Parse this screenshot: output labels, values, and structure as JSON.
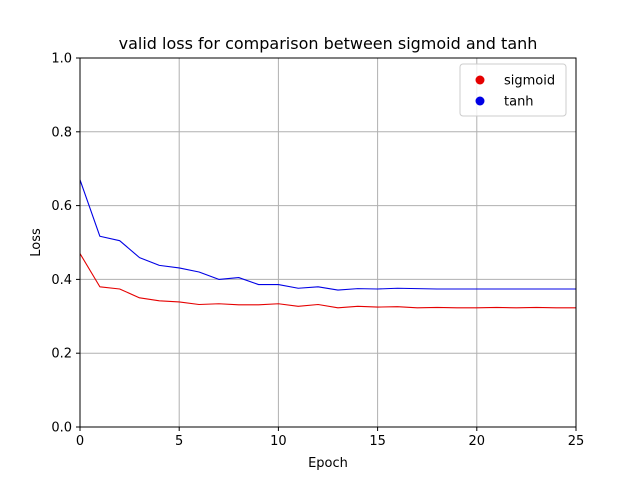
{
  "chart_data": {
    "type": "line",
    "title": "valid loss for comparison between sigmoid and tanh",
    "xlabel": "Epoch",
    "ylabel": "Loss",
    "xlim": [
      0,
      25
    ],
    "ylim": [
      0,
      1.0
    ],
    "grid": true,
    "legend_position": "top-right",
    "x_ticks": [
      0,
      5,
      10,
      15,
      20,
      25
    ],
    "x_tick_labels": [
      "0",
      "5",
      "10",
      "15",
      "20",
      "25"
    ],
    "y_ticks": [
      0,
      0.2,
      0.4,
      0.6,
      0.8,
      1.0
    ],
    "y_tick_labels": [
      "0.0",
      "0.2",
      "0.4",
      "0.6",
      "0.8",
      "1.0"
    ],
    "x": [
      0,
      1,
      2,
      3,
      4,
      5,
      6,
      7,
      8,
      9,
      10,
      11,
      12,
      13,
      14,
      15,
      16,
      17,
      18,
      19,
      20,
      21,
      22,
      23,
      24,
      25
    ],
    "series": [
      {
        "name": "sigmoid",
        "color": "#e50000",
        "values": [
          0.47,
          0.38,
          0.374,
          0.35,
          0.342,
          0.339,
          0.332,
          0.334,
          0.331,
          0.331,
          0.334,
          0.327,
          0.332,
          0.323,
          0.327,
          0.325,
          0.326,
          0.323,
          0.324,
          0.323,
          0.323,
          0.324,
          0.323,
          0.324,
          0.323,
          0.323
        ]
      },
      {
        "name": "tanh",
        "color": "#0000e5",
        "values": [
          0.67,
          0.517,
          0.505,
          0.459,
          0.438,
          0.431,
          0.42,
          0.4,
          0.405,
          0.386,
          0.386,
          0.376,
          0.38,
          0.371,
          0.375,
          0.374,
          0.376,
          0.375,
          0.374,
          0.374,
          0.374,
          0.374,
          0.374,
          0.374,
          0.374,
          0.374
        ]
      }
    ]
  }
}
